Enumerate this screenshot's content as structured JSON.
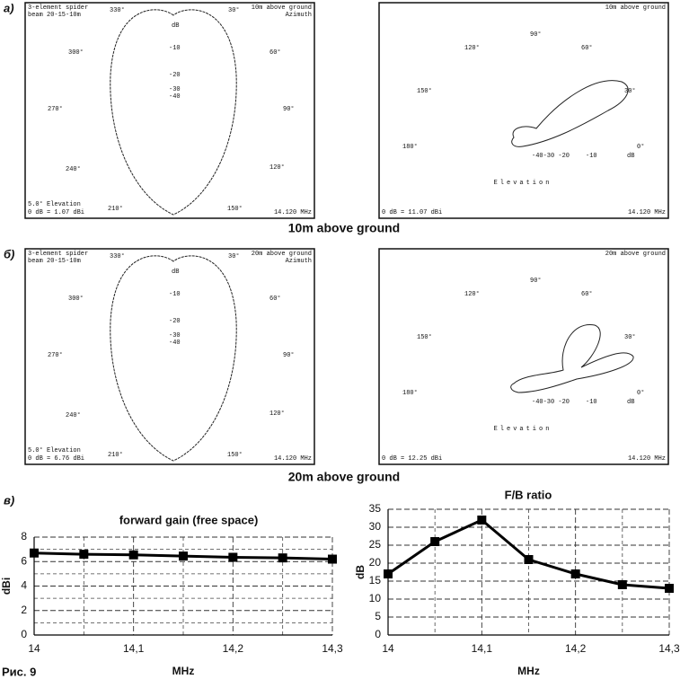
{
  "labels": {
    "a": "а)",
    "b": "б)",
    "c": "в)",
    "figure": "Рис. 9",
    "caption_10m": "10m above ground",
    "caption_20m": "20m above ground"
  },
  "panels": [
    {
      "header_left": [
        "3-element spider",
        "beam 20-15-10m"
      ],
      "header_right": [
        "10m above ground",
        "Azimuth"
      ],
      "angles": [
        "330°",
        "30°",
        "300°",
        "60°",
        "270°",
        "90°",
        "240°",
        "120°",
        "210°",
        "150°"
      ],
      "scale": [
        "dB",
        "-10",
        "-20",
        "-30",
        "-40"
      ],
      "footer_left": [
        "5.0° Elevation",
        "0 dB = 1.07 dBi"
      ],
      "footer_right": [
        "14.120 MHz"
      ]
    },
    {
      "header_right": [
        "10m above ground"
      ],
      "angles": [
        "90°",
        "120°",
        "60°",
        "150°",
        "30°",
        "180°",
        "0°"
      ],
      "scale": [
        "-40-30 -20",
        "-10",
        "dB"
      ],
      "caption": "Elevation",
      "footer_left": [
        "0 dB = 11.07 dBi"
      ],
      "footer_right": [
        "14.120 MHz"
      ]
    },
    {
      "header_left": [
        "3-element spider",
        "beam 20-15-10m"
      ],
      "header_right": [
        "20m above ground",
        "Azimuth"
      ],
      "angles": [
        "330°",
        "30°",
        "300°",
        "60°",
        "270°",
        "90°",
        "240°",
        "120°",
        "210°",
        "150°"
      ],
      "scale": [
        "dB",
        "-10",
        "-20",
        "-30",
        "-40"
      ],
      "footer_left": [
        "5.0° Elevation",
        "0 dB = 6.76 dBi"
      ],
      "footer_right": [
        "14.120 MHz"
      ]
    },
    {
      "header_right": [
        "20m above ground"
      ],
      "angles": [
        "90°",
        "120°",
        "60°",
        "150°",
        "30°",
        "180°",
        "0°"
      ],
      "scale": [
        "-40-30 -20",
        "-10",
        "dB"
      ],
      "caption": "Elevation",
      "footer_left": [
        "0 dB = 12.25 dBi"
      ],
      "footer_right": [
        "14.120 MHz"
      ]
    }
  ],
  "chart_data": [
    {
      "type": "line",
      "title": "forward gain (free space)",
      "x_label": "MHz",
      "y_label": "dBi",
      "x": [
        14,
        14.05,
        14.1,
        14.15,
        14.2,
        14.25,
        14.3
      ],
      "values": [
        6.7,
        6.6,
        6.55,
        6.45,
        6.35,
        6.3,
        6.2
      ],
      "color": "#000000",
      "xlim": [
        14,
        14.3
      ],
      "xticks": [
        14,
        {
          "value": 14.1,
          "label": "14,1"
        },
        {
          "value": 14.2,
          "label": "14,2"
        },
        {
          "value": 14.3,
          "label": "14,3"
        }
      ],
      "x_minor_ticks": [
        14.05,
        14.15,
        14.25
      ],
      "ylim": [
        0,
        8
      ],
      "yticks": [
        0,
        2,
        4,
        6,
        8
      ],
      "y_minor_ticks": [
        1,
        3,
        5,
        7
      ],
      "grid": true
    },
    {
      "type": "line",
      "title": "F/B ratio",
      "x_label": "MHz",
      "y_label": "dB",
      "x": [
        14,
        14.05,
        14.1,
        14.15,
        14.2,
        14.25,
        14.3
      ],
      "values": [
        17,
        26,
        32,
        21,
        17,
        14,
        13
      ],
      "color": "#000000",
      "xlim": [
        14,
        14.3
      ],
      "xticks": [
        14,
        {
          "value": 14.1,
          "label": "14,1"
        },
        {
          "value": 14.2,
          "label": "14,2"
        },
        {
          "value": 14.3,
          "label": "14,3"
        }
      ],
      "x_minor_ticks": [
        14.05,
        14.15,
        14.25
      ],
      "ylim": [
        0,
        35
      ],
      "yticks": [
        0,
        5,
        10,
        15,
        20,
        25,
        30,
        35
      ],
      "y_minor_ticks": [],
      "grid": true
    }
  ]
}
